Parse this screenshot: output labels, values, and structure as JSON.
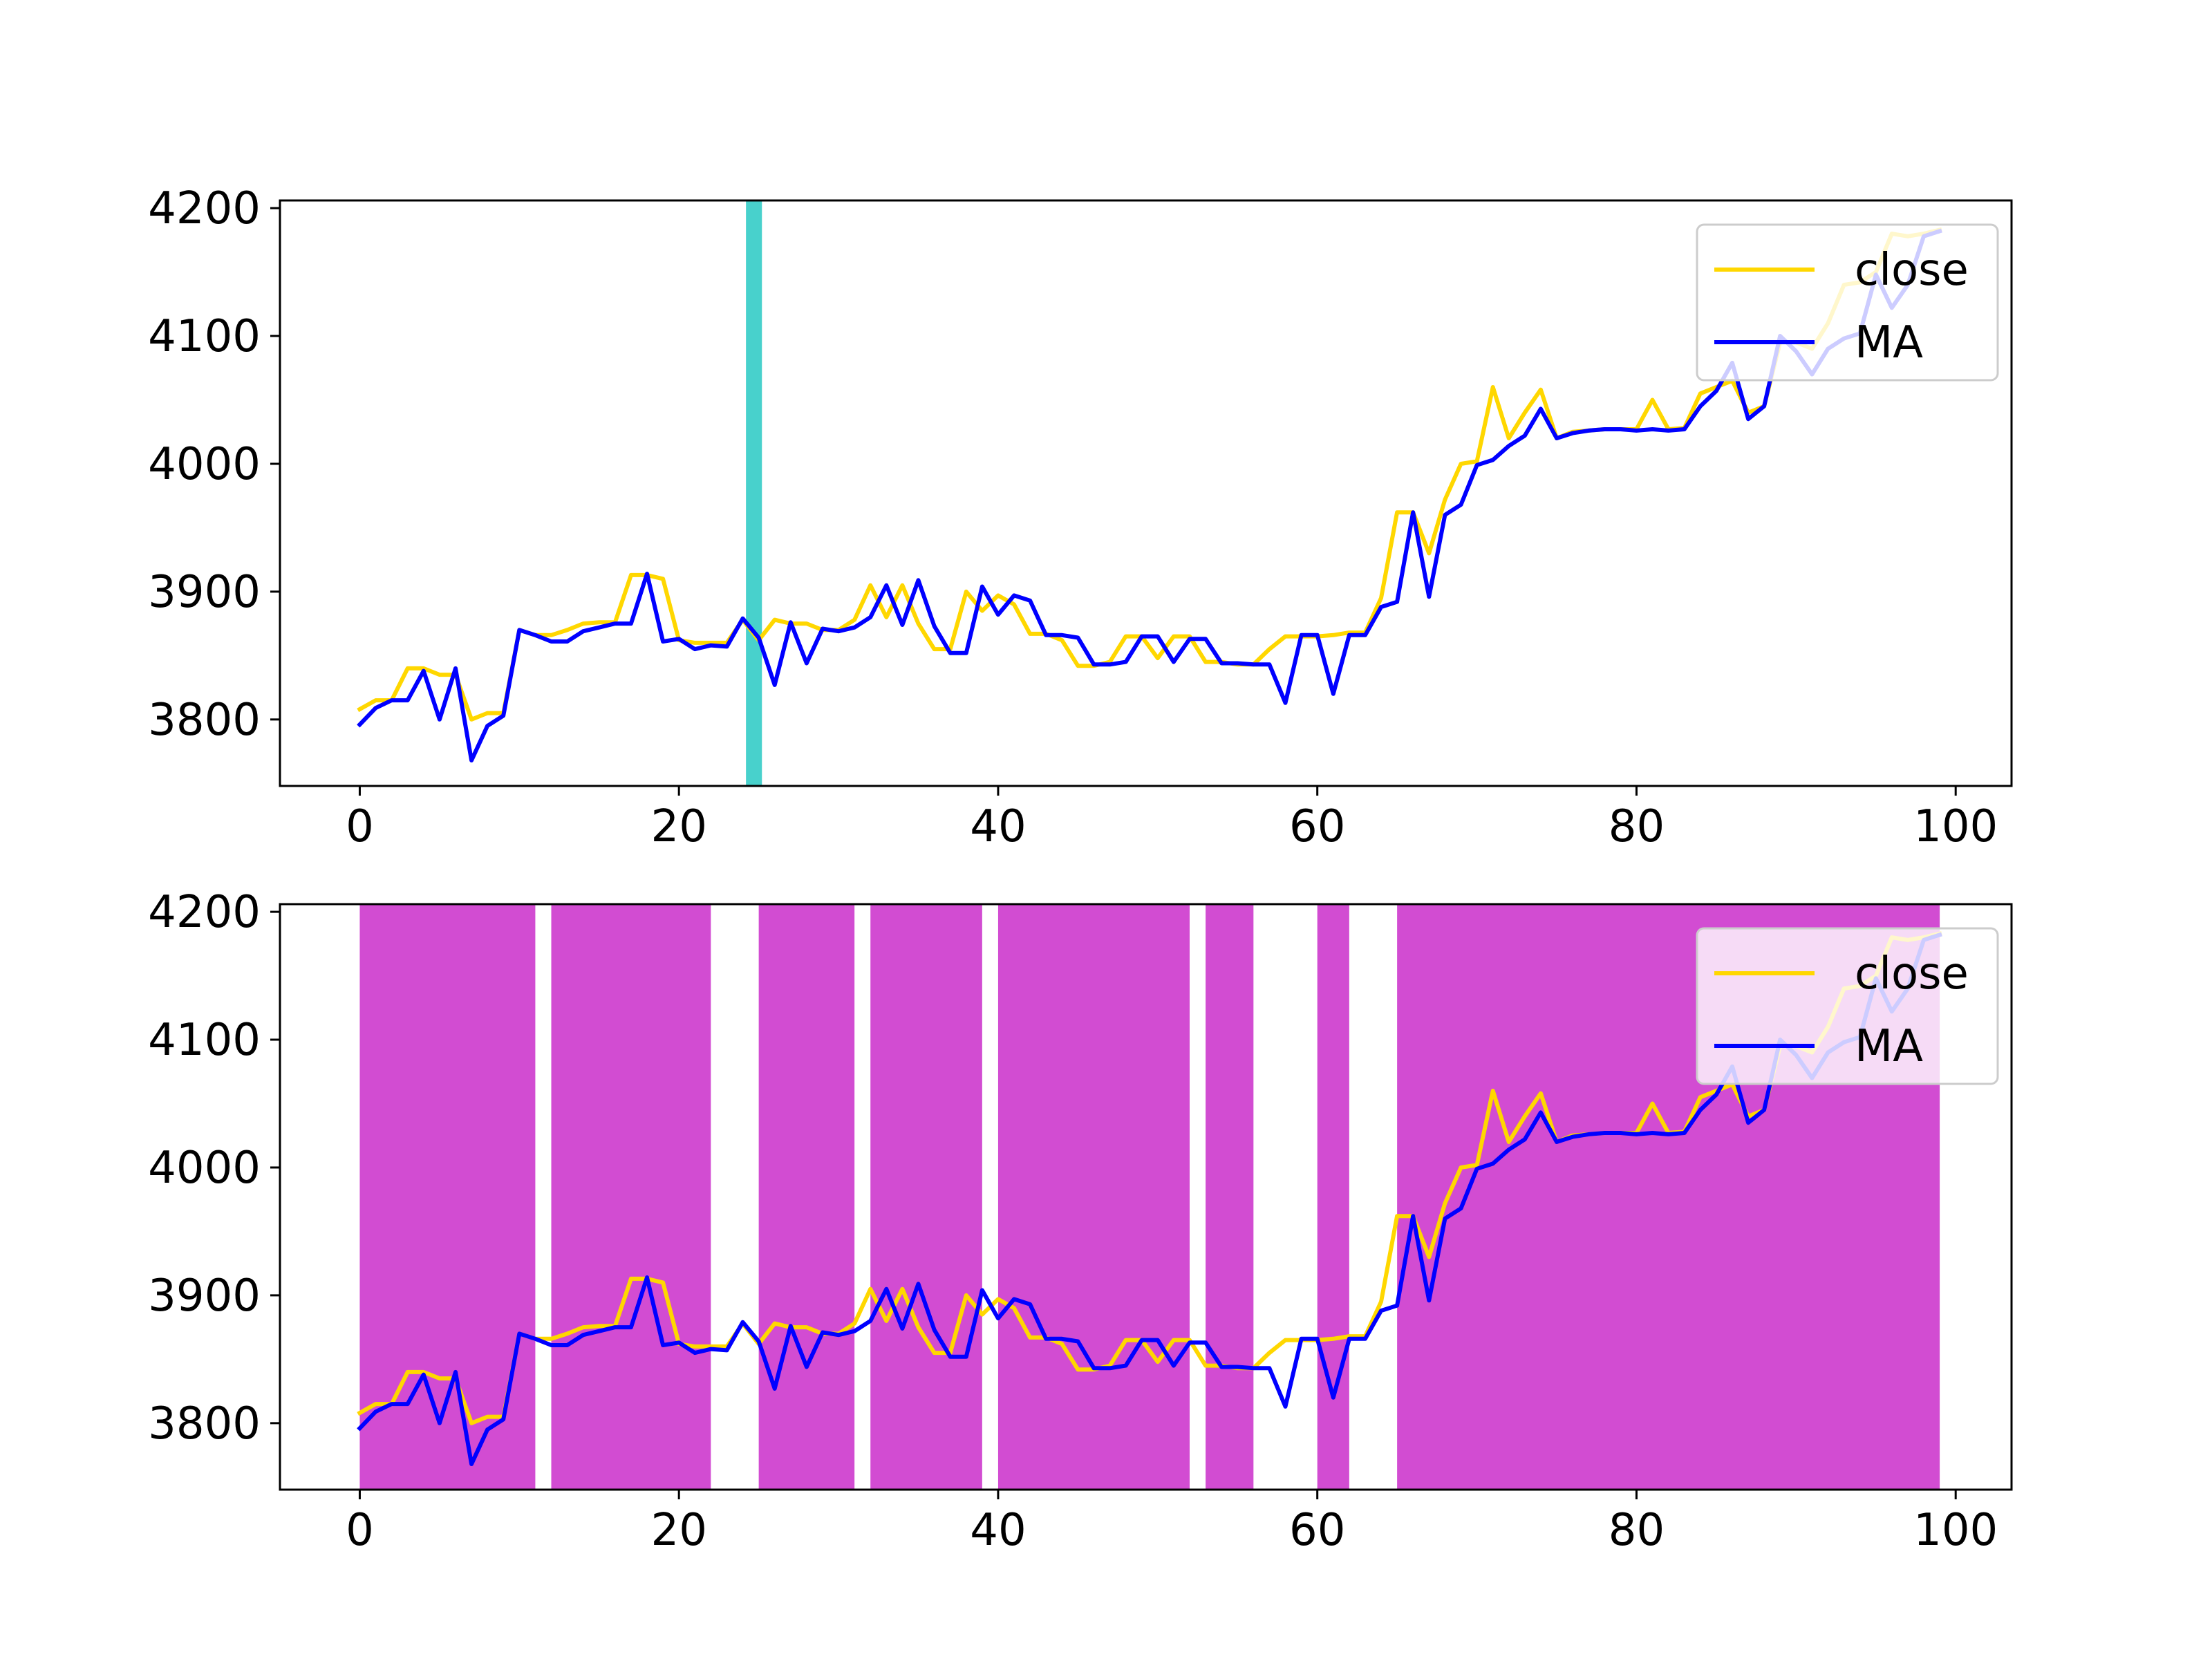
{
  "chart_data": [
    {
      "type": "line",
      "x": [
        0,
        1,
        2,
        3,
        4,
        5,
        6,
        7,
        8,
        9,
        10,
        11,
        12,
        13,
        14,
        15,
        16,
        17,
        18,
        19,
        20,
        21,
        22,
        23,
        24,
        25,
        26,
        27,
        28,
        29,
        30,
        31,
        32,
        33,
        34,
        35,
        36,
        37,
        38,
        39,
        40,
        41,
        42,
        43,
        44,
        45,
        46,
        47,
        48,
        49,
        50,
        51,
        52,
        53,
        54,
        55,
        56,
        57,
        58,
        59,
        60,
        61,
        62,
        63,
        64,
        65,
        66,
        67,
        68,
        69,
        70,
        71,
        72,
        73,
        74,
        75,
        76,
        77,
        78,
        79,
        80,
        81,
        82,
        83,
        84,
        85,
        86,
        87,
        88,
        89,
        90,
        91,
        92,
        93,
        94,
        95,
        96,
        97,
        98,
        99
      ],
      "series": [
        {
          "name": "close",
          "color": "#ffd700",
          "values": [
            3808,
            3815,
            3815,
            3840,
            3840,
            3835,
            3835,
            3800,
            3805,
            3805,
            3870,
            3866,
            3866,
            3870,
            3875,
            3876,
            3876,
            3913,
            3913,
            3910,
            3862,
            3860,
            3860,
            3860,
            3878,
            3862,
            3878,
            3875,
            3875,
            3870,
            3870,
            3878,
            3905,
            3880,
            3905,
            3875,
            3855,
            3855,
            3900,
            3885,
            3897,
            3890,
            3867,
            3867,
            3862,
            3842,
            3842,
            3845,
            3865,
            3865,
            3848,
            3865,
            3865,
            3845,
            3845,
            3843,
            3843,
            3855,
            3865,
            3865,
            3865,
            3866,
            3868,
            3868,
            3895,
            3962,
            3962,
            3930,
            3972,
            4000,
            4002,
            4060,
            4020,
            4040,
            4058,
            4020,
            4025,
            4026,
            4027,
            4027,
            4027,
            4050,
            4027,
            4028,
            4055,
            4060,
            4065,
            4040,
            4045,
            4095,
            4095,
            4090,
            4110,
            4140,
            4142,
            4150,
            4180,
            4178,
            4180,
            4183
          ]
        },
        {
          "name": "MA",
          "color": "#0000ff",
          "values": [
            3796,
            3809,
            3815,
            3815,
            3838,
            3800,
            3840,
            3768,
            3795,
            3803,
            3870,
            3866,
            3861,
            3861,
            3869,
            3872,
            3875,
            3875,
            3914,
            3861,
            3863,
            3855,
            3858,
            3857,
            3879,
            3864,
            3827,
            3876,
            3844,
            3871,
            3869,
            3872,
            3880,
            3905,
            3874,
            3909,
            3873,
            3852,
            3852,
            3904,
            3882,
            3897,
            3893,
            3866,
            3866,
            3864,
            3843,
            3843,
            3845,
            3865,
            3865,
            3845,
            3863,
            3863,
            3844,
            3844,
            3843,
            3843,
            3813,
            3866,
            3866,
            3820,
            3866,
            3866,
            3888,
            3892,
            3962,
            3896,
            3960,
            3968,
            3999,
            4003,
            4014,
            4022,
            4043,
            4020,
            4024,
            4026,
            4027,
            4027,
            4026,
            4027,
            4026,
            4027,
            4045,
            4057,
            4079,
            4035,
            4045,
            4100,
            4088,
            4070,
            4090,
            4098,
            4102,
            4148,
            4122,
            4140,
            4178,
            4182
          ]
        }
      ],
      "xlim": [
        -5,
        103.5
      ],
      "ylim": [
        3748,
        4206
      ],
      "xticks": [
        "0",
        "20",
        "40",
        "60",
        "80",
        "100"
      ],
      "yticks": [
        "3800",
        "3900",
        "4000",
        "4100",
        "4200"
      ],
      "legend_position": "upper-right",
      "highlight": {
        "x_from": 24.2,
        "x_to": 25.2,
        "color": "#48d1cc"
      },
      "title": "",
      "xlabel": "",
      "ylabel": ""
    },
    {
      "type": "line",
      "x": [
        0,
        1,
        2,
        3,
        4,
        5,
        6,
        7,
        8,
        9,
        10,
        11,
        12,
        13,
        14,
        15,
        16,
        17,
        18,
        19,
        20,
        21,
        22,
        23,
        24,
        25,
        26,
        27,
        28,
        29,
        30,
        31,
        32,
        33,
        34,
        35,
        36,
        37,
        38,
        39,
        40,
        41,
        42,
        43,
        44,
        45,
        46,
        47,
        48,
        49,
        50,
        51,
        52,
        53,
        54,
        55,
        56,
        57,
        58,
        59,
        60,
        61,
        62,
        63,
        64,
        65,
        66,
        67,
        68,
        69,
        70,
        71,
        72,
        73,
        74,
        75,
        76,
        77,
        78,
        79,
        80,
        81,
        82,
        83,
        84,
        85,
        86,
        87,
        88,
        89,
        90,
        91,
        92,
        93,
        94,
        95,
        96,
        97,
        98,
        99
      ],
      "series": [
        {
          "name": "close",
          "color": "#ffd700",
          "values": [
            3808,
            3815,
            3815,
            3840,
            3840,
            3835,
            3835,
            3800,
            3805,
            3805,
            3870,
            3866,
            3866,
            3870,
            3875,
            3876,
            3876,
            3913,
            3913,
            3910,
            3862,
            3860,
            3860,
            3860,
            3878,
            3862,
            3878,
            3875,
            3875,
            3870,
            3870,
            3878,
            3905,
            3880,
            3905,
            3875,
            3855,
            3855,
            3900,
            3885,
            3897,
            3890,
            3867,
            3867,
            3862,
            3842,
            3842,
            3845,
            3865,
            3865,
            3848,
            3865,
            3865,
            3845,
            3845,
            3843,
            3843,
            3855,
            3865,
            3865,
            3865,
            3866,
            3868,
            3868,
            3895,
            3962,
            3962,
            3930,
            3972,
            4000,
            4002,
            4060,
            4020,
            4040,
            4058,
            4020,
            4025,
            4026,
            4027,
            4027,
            4027,
            4050,
            4027,
            4028,
            4055,
            4060,
            4065,
            4040,
            4045,
            4095,
            4095,
            4090,
            4110,
            4140,
            4142,
            4150,
            4180,
            4178,
            4180,
            4183
          ]
        },
        {
          "name": "MA",
          "color": "#0000ff",
          "values": [
            3796,
            3809,
            3815,
            3815,
            3838,
            3800,
            3840,
            3768,
            3795,
            3803,
            3870,
            3866,
            3861,
            3861,
            3869,
            3872,
            3875,
            3875,
            3914,
            3861,
            3863,
            3855,
            3858,
            3857,
            3879,
            3864,
            3827,
            3876,
            3844,
            3871,
            3869,
            3872,
            3880,
            3905,
            3874,
            3909,
            3873,
            3852,
            3852,
            3904,
            3882,
            3897,
            3893,
            3866,
            3866,
            3864,
            3843,
            3843,
            3845,
            3865,
            3865,
            3845,
            3863,
            3863,
            3844,
            3844,
            3843,
            3843,
            3813,
            3866,
            3866,
            3820,
            3866,
            3866,
            3888,
            3892,
            3962,
            3896,
            3960,
            3968,
            3999,
            4003,
            4014,
            4022,
            4043,
            4020,
            4024,
            4026,
            4027,
            4027,
            4026,
            4027,
            4026,
            4027,
            4045,
            4057,
            4079,
            4035,
            4045,
            4100,
            4088,
            4070,
            4090,
            4098,
            4102,
            4148,
            4122,
            4140,
            4178,
            4182
          ]
        }
      ],
      "xlim": [
        -5,
        103.5
      ],
      "ylim": [
        3748,
        4206
      ],
      "xticks": [
        "0",
        "20",
        "40",
        "60",
        "80",
        "100"
      ],
      "yticks": [
        "3800",
        "3900",
        "4000",
        "4100",
        "4200"
      ],
      "legend_position": "upper-right",
      "spans": [
        {
          "x_from": 0,
          "x_to": 11
        },
        {
          "x_from": 12,
          "x_to": 22
        },
        {
          "x_from": 25,
          "x_to": 31
        },
        {
          "x_from": 32,
          "x_to": 39
        },
        {
          "x_from": 40,
          "x_to": 52
        },
        {
          "x_from": 53,
          "x_to": 56
        },
        {
          "x_from": 60,
          "x_to": 62
        },
        {
          "x_from": 65,
          "x_to": 99
        }
      ],
      "span_color": "#c71fc7",
      "span_opacity": 0.8,
      "title": "",
      "xlabel": "",
      "ylabel": ""
    }
  ]
}
